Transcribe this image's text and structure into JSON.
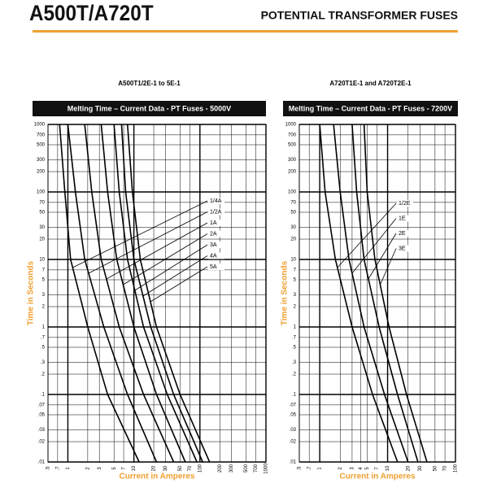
{
  "header": {
    "title": "A500T/A720T",
    "subtitle": "POTENTIAL TRANSFORMER FUSES"
  },
  "chart_data": [
    {
      "type": "line",
      "subtitle": "A500T1/2E-1 to 5E-1",
      "title": "Melting Time – Current Data - PT Fuses - 5000V",
      "xlabel": "Current in Amperes",
      "ylabel": "Time in Seconds",
      "xlog": true,
      "ylog": true,
      "grid": true,
      "xlim": [
        0.5,
        1000
      ],
      "ylim": [
        0.01,
        1000
      ],
      "xticks": [
        {
          "value": 0.5,
          "label": ".5"
        },
        {
          "value": 0.7,
          "label": ".7"
        },
        1,
        2,
        3,
        5,
        7,
        10,
        20,
        30,
        50,
        70,
        100,
        200,
        300,
        500,
        700,
        1000
      ],
      "yticks": [
        1000,
        700,
        500,
        300,
        200,
        100,
        70,
        50,
        30,
        20,
        10,
        7,
        5,
        3,
        2,
        1,
        {
          "value": 0.7,
          "label": ".7"
        },
        {
          "value": 0.5,
          "label": ".5"
        },
        {
          "value": 0.3,
          "label": ".3"
        },
        {
          "value": 0.2,
          "label": ".2"
        },
        {
          "value": 0.1,
          "label": ".1"
        },
        {
          "value": 0.07,
          "label": ".07"
        },
        {
          "value": 0.05,
          "label": ".05"
        },
        {
          "value": 0.03,
          "label": ".03"
        },
        {
          "value": 0.02,
          "label": ".02"
        },
        {
          "value": 0.01,
          "label": ".01"
        }
      ],
      "series": [
        {
          "name": "1/4A",
          "color": "#000000",
          "x": [
            0.75,
            0.9,
            1.1,
            2,
            4,
            12
          ],
          "values": [
            1000,
            100,
            10,
            1,
            0.1,
            0.01
          ]
        },
        {
          "name": "1/2A",
          "color": "#000000",
          "x": [
            1.0,
            1.3,
            1.8,
            3.5,
            8,
            22
          ],
          "values": [
            1000,
            100,
            10,
            1,
            0.1,
            0.01
          ]
        },
        {
          "name": "1A",
          "color": "#000000",
          "x": [
            1.8,
            2.3,
            3.2,
            6,
            14,
            40
          ],
          "values": [
            1000,
            100,
            10,
            1,
            0.1,
            0.01
          ]
        },
        {
          "name": "2A",
          "color": "#000000",
          "x": [
            3.2,
            4,
            5.5,
            10,
            22,
            60
          ],
          "values": [
            1000,
            100,
            10,
            1,
            0.1,
            0.01
          ]
        },
        {
          "name": "3A",
          "color": "#000000",
          "x": [
            5,
            6,
            8,
            14,
            32,
            90
          ],
          "values": [
            1000,
            100,
            10,
            1,
            0.1,
            0.01
          ]
        },
        {
          "name": "4A",
          "color": "#000000",
          "x": [
            6.5,
            7.5,
            10,
            18,
            40,
            110
          ],
          "values": [
            1000,
            100,
            10,
            1,
            0.1,
            0.01
          ]
        },
        {
          "name": "5A",
          "color": "#000000",
          "x": [
            8,
            9.5,
            12.5,
            22,
            50,
            140
          ],
          "values": [
            1000,
            100,
            10,
            1,
            0.1,
            0.01
          ]
        }
      ]
    },
    {
      "type": "line",
      "subtitle": "A720T1E-1  and A720T2E-1",
      "title": "Melting Time – Current Data - PT Fuses - 7200V",
      "xlabel": "Current in Amperes",
      "ylabel": "Time in Seconds",
      "xlog": true,
      "ylog": true,
      "grid": true,
      "xlim": [
        0.5,
        100
      ],
      "ylim": [
        0.01,
        1000
      ],
      "xticks": [
        {
          "value": 0.5,
          "label": ".5"
        },
        {
          "value": 0.7,
          "label": ".7"
        },
        1,
        2,
        3,
        4,
        5,
        7,
        10,
        20,
        30,
        50,
        70,
        100
      ],
      "yticks": [
        1000,
        700,
        500,
        300,
        200,
        100,
        70,
        50,
        30,
        20,
        10,
        7,
        5,
        3,
        2,
        1,
        {
          "value": 0.7,
          "label": ".7"
        },
        {
          "value": 0.5,
          "label": ".5"
        },
        {
          "value": 0.3,
          "label": ".3"
        },
        {
          "value": 0.2,
          "label": ".2"
        },
        {
          "value": 0.1,
          "label": ".1"
        },
        {
          "value": 0.07,
          "label": ".07"
        },
        {
          "value": 0.05,
          "label": ".05"
        },
        {
          "value": 0.03,
          "label": ".03"
        },
        {
          "value": 0.02,
          "label": ".02"
        },
        {
          "value": 0.01,
          "label": ".01"
        }
      ],
      "series": [
        {
          "name": "1/2E",
          "color": "#000000",
          "x": [
            1.0,
            1.2,
            1.7,
            3,
            6,
            14
          ],
          "values": [
            1000,
            100,
            10,
            1,
            0.1,
            0.01
          ]
        },
        {
          "name": "1E",
          "color": "#000000",
          "x": [
            1.6,
            2,
            2.7,
            4.5,
            9,
            20
          ],
          "values": [
            1000,
            100,
            10,
            1,
            0.1,
            0.01
          ]
        },
        {
          "name": "2E",
          "color": "#000000",
          "x": [
            3,
            3.5,
            4.5,
            7.5,
            14,
            28
          ],
          "values": [
            1000,
            100,
            10,
            1,
            0.1,
            0.01
          ]
        },
        {
          "name": "3E",
          "color": "#000000",
          "x": [
            4.5,
            5,
            6.5,
            10.5,
            19,
            38
          ],
          "values": [
            1000,
            100,
            10,
            1,
            0.1,
            0.01
          ]
        }
      ]
    }
  ]
}
